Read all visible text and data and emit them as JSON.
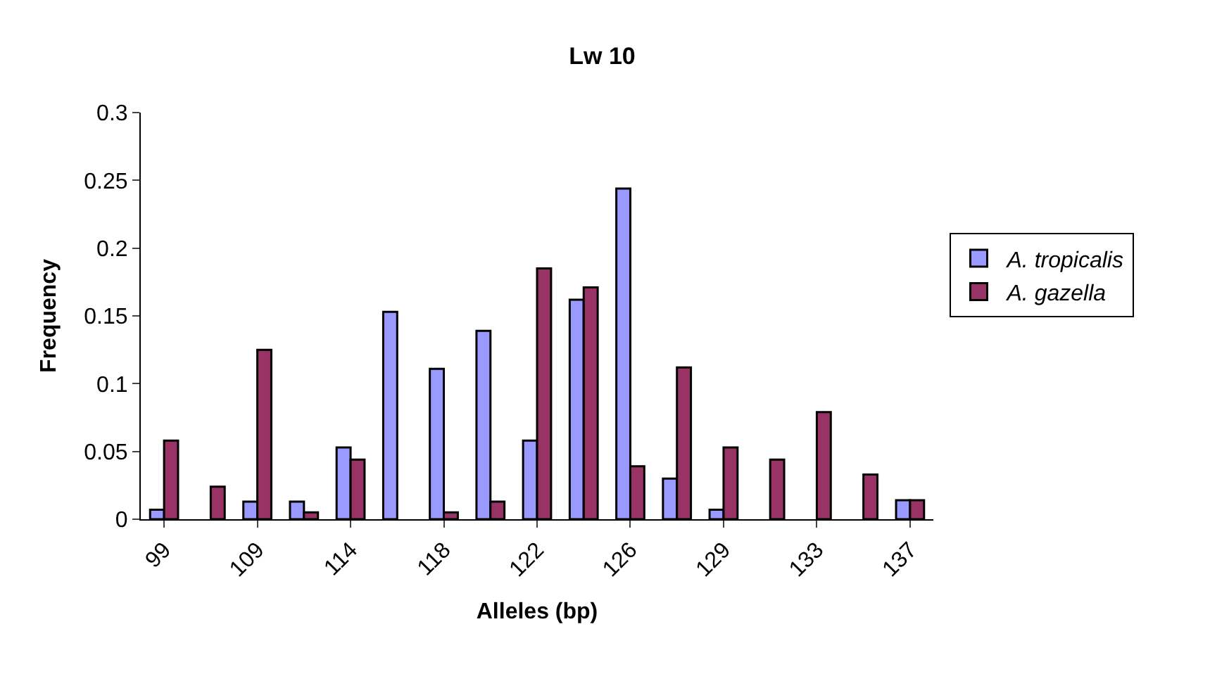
{
  "chart_data": {
    "type": "bar",
    "title": "Lw 10",
    "xlabel": "Alleles (bp)",
    "ylabel": "Frequency",
    "categories": [
      "99",
      null,
      "109",
      null,
      "114",
      null,
      "118",
      null,
      "122",
      null,
      "126",
      null,
      "129",
      null,
      "133",
      null,
      "137"
    ],
    "series": [
      {
        "name": "A. tropicalis",
        "color": "#9999ff",
        "values": [
          0.007,
          null,
          0.013,
          0.013,
          0.053,
          0.153,
          0.111,
          0.139,
          0.058,
          0.162,
          0.244,
          0.03,
          0.007,
          null,
          null,
          null,
          0.014
        ]
      },
      {
        "name": "A. gazella",
        "color": "#993366",
        "values": [
          0.058,
          0.024,
          0.125,
          0.005,
          0.044,
          null,
          0.005,
          0.013,
          0.185,
          0.171,
          0.039,
          0.112,
          0.053,
          0.044,
          0.079,
          0.033,
          0.014
        ]
      }
    ],
    "ylim": [
      0,
      0.3
    ],
    "yticks": [
      0,
      {
        "value": 0.05,
        "label": "0.05"
      },
      {
        "value": 0.1,
        "label": "0.1"
      },
      {
        "value": 0.15,
        "label": "0.15"
      },
      {
        "value": 0.2,
        "label": "0.2"
      },
      {
        "value": 0.25,
        "label": "0.25"
      },
      {
        "value": 0.3,
        "label": "0.3"
      }
    ],
    "grid": false,
    "legend": "right"
  }
}
